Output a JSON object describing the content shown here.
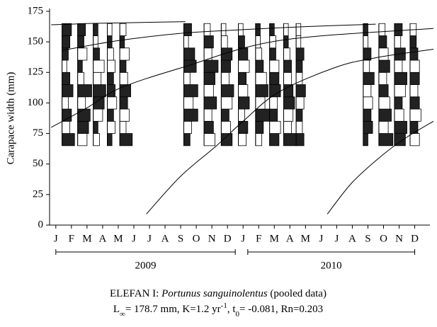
{
  "chart_data": {
    "type": "elefan",
    "ylabel": "Carapace width (mm)",
    "ylim": [
      0,
      175
    ],
    "yticks": [
      0,
      25,
      50,
      75,
      100,
      125,
      150,
      175
    ],
    "xlim": [
      -0.4,
      24.2
    ],
    "xticks": [
      {
        "value": 0,
        "label": "J"
      },
      {
        "value": 1,
        "label": "F"
      },
      {
        "value": 2,
        "label": "M"
      },
      {
        "value": 3,
        "label": "A"
      },
      {
        "value": 4,
        "label": "M"
      },
      {
        "value": 5,
        "label": "J"
      },
      {
        "value": 6,
        "label": "J"
      },
      {
        "value": 7,
        "label": "A"
      },
      {
        "value": 8,
        "label": "S"
      },
      {
        "value": 9,
        "label": "O"
      },
      {
        "value": 10,
        "label": "N"
      },
      {
        "value": 11,
        "label": "D"
      },
      {
        "value": 12,
        "label": "J"
      },
      {
        "value": 13,
        "label": "F"
      },
      {
        "value": 14,
        "label": "M"
      },
      {
        "value": 15,
        "label": "A"
      },
      {
        "value": 16,
        "label": "M"
      },
      {
        "value": 17,
        "label": "J"
      },
      {
        "value": 18,
        "label": "J"
      },
      {
        "value": 19,
        "label": "A"
      },
      {
        "value": 20,
        "label": "S"
      },
      {
        "value": 21,
        "label": "O"
      },
      {
        "value": 22,
        "label": "N"
      },
      {
        "value": 23,
        "label": "D"
      }
    ],
    "periods": [
      {
        "label": "2009",
        "start": 0,
        "end": 11.5
      },
      {
        "label": "2010",
        "start": 12.3,
        "end": 23
      }
    ],
    "lengths": [
      70,
      80,
      90,
      100,
      110,
      120,
      130,
      140,
      150,
      160
    ],
    "samples": [
      {
        "x": 0.4,
        "values": [
          0.8,
          -0.5,
          0.6,
          -0.4,
          0.7,
          0.5,
          -0.3,
          0.4,
          0.5,
          0.6
        ]
      },
      {
        "x": 1.4,
        "values": [
          -0.6,
          0.7,
          0.8,
          -0.5,
          0.9,
          -0.4,
          0.3,
          -0.6,
          0.4,
          0.5
        ]
      },
      {
        "x": 2.4,
        "values": [
          -0.4,
          0.3,
          -0.6,
          0.7,
          0.8,
          -0.5,
          -0.7,
          0.4,
          -0.3,
          0.3
        ]
      },
      {
        "x": 3.3,
        "values": [
          0.3,
          -0.5,
          0.4,
          -0.6,
          0.5,
          0.4,
          -0.5,
          -0.4,
          0.3,
          -0.3
        ]
      },
      {
        "x": 4.1,
        "values": [
          0.8,
          -0.4,
          -0.6,
          0.5,
          0.7,
          -0.5,
          0.4,
          -0.6,
          0.3,
          -0.4
        ]
      },
      {
        "x": 8.2,
        "values": [
          0.4,
          -0.5,
          0.9,
          -0.6,
          0.9,
          -0.4,
          0.8,
          0.7,
          -0.3,
          0.5
        ]
      },
      {
        "x": 9.5,
        "values": [
          -0.7,
          0.6,
          -0.5,
          0.8,
          -0.6,
          0.7,
          0.9,
          -0.5,
          0.6,
          -0.4
        ]
      },
      {
        "x": 10.6,
        "values": [
          0.7,
          -0.6,
          0.5,
          -0.7,
          0.8,
          -0.5,
          0.6,
          0.7,
          -0.4,
          -0.3
        ]
      },
      {
        "x": 11.7,
        "values": [
          -0.5,
          0.6,
          -0.4,
          0.7,
          -0.6,
          0.5,
          -0.7,
          0.6,
          0.4,
          -0.3
        ]
      },
      {
        "x": 12.8,
        "values": [
          -0.4,
          0.5,
          0.9,
          -0.6,
          0.8,
          -0.7,
          0.5,
          -0.4,
          -0.3,
          0.3
        ]
      },
      {
        "x": 13.7,
        "values": [
          0.6,
          -0.7,
          0.5,
          -0.5,
          0.7,
          0.6,
          -0.6,
          0.4,
          -0.4,
          0.3
        ]
      },
      {
        "x": 14.6,
        "values": [
          0.8,
          -0.5,
          -0.6,
          0.7,
          0.6,
          -0.5,
          0.5,
          -0.4,
          0.3,
          -0.3
        ]
      },
      {
        "x": 15.4,
        "values": [
          0.5,
          -0.4,
          0.4,
          -0.5,
          0.6,
          -0.4,
          0.4,
          0.5,
          -0.3,
          -0.3
        ]
      },
      {
        "x": 19.7,
        "values": [
          0.3,
          0.6,
          0.5,
          -0.6,
          -0.5,
          0.7,
          -0.4,
          0.5,
          -0.3,
          0.3
        ]
      },
      {
        "x": 20.7,
        "values": [
          0.9,
          -0.6,
          0.8,
          -0.7,
          0.6,
          -0.5,
          0.7,
          -0.6,
          0.5,
          -0.4
        ]
      },
      {
        "x": 21.7,
        "values": [
          0.7,
          0.8,
          -0.6,
          0.5,
          -0.7,
          0.8,
          -0.5,
          0.7,
          -0.4,
          0.5
        ]
      },
      {
        "x": 22.7,
        "values": [
          -0.6,
          0.5,
          -0.7,
          0.6,
          -0.5,
          0.6,
          -0.6,
          0.5,
          0.4,
          -0.4
        ]
      }
    ],
    "curves": [
      {
        "x": [
          -0.3,
          1,
          2,
          4,
          6,
          8.3
        ],
        "y": [
          164,
          164.5,
          165,
          165.5,
          166,
          166.5
        ]
      },
      {
        "x": [
          0.4,
          4,
          8,
          12,
          16,
          20.5
        ],
        "y": [
          143,
          151,
          157,
          160,
          162.5,
          164.5
        ]
      },
      {
        "x": [
          -0.3,
          2,
          4.1,
          8.1,
          14.3,
          24.2
        ],
        "y": [
          80,
          96,
          112,
          129,
          151,
          161
        ]
      },
      {
        "x": [
          5.8,
          8,
          10.3,
          12,
          14.3,
          17.9,
          20.5,
          24.2
        ],
        "y": [
          9,
          40,
          65,
          85,
          109,
          129,
          137,
          144
        ]
      },
      {
        "x": [
          17.4,
          19,
          21,
          22.5,
          24.2
        ],
        "y": [
          9,
          35,
          58,
          72,
          85
        ]
      }
    ],
    "caption": [
      [
        {
          "text": "ELEFAN I: "
        },
        {
          "text": "Portunus sanguinolentus",
          "style": "italic"
        },
        {
          "text": " (pooled data)"
        }
      ],
      [
        {
          "text": "L"
        },
        {
          "text": "∞",
          "style": "sub"
        },
        {
          "text": "= 178.7 mm, K=1.2 yr"
        },
        {
          "text": "-1",
          "style": "sup"
        },
        {
          "text": ", t"
        },
        {
          "text": "0",
          "style": "sub"
        },
        {
          "text": "= -0.081, Rn=0.203"
        }
      ]
    ]
  }
}
